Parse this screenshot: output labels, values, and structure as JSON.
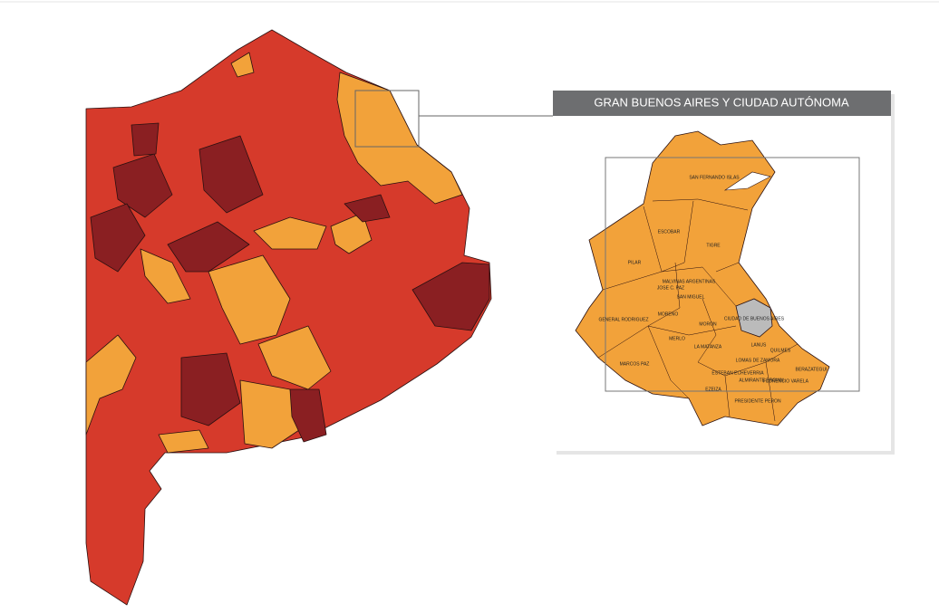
{
  "inset": {
    "title": "GRAN BUENOS AIRES Y CIUDAD AUTÓNOMA",
    "districts": [
      "SAN FERNANDO ISLAS",
      "ESCOBAR",
      "TIGRE",
      "PILAR",
      "MALVINAS ARGENTINAS",
      "JOSE C. PAZ",
      "SAN MIGUEL",
      "MORENO",
      "MORON",
      "GENERAL RODRIGUEZ",
      "MERLO",
      "CIUDAD DE BUENOS AIRES",
      "LA MATANZA",
      "LANUS",
      "QUILMES",
      "LOMAS DE ZAMORA",
      "BERAZATEGUI",
      "MARCOS PAZ",
      "ESTEBAN ECHEVERRIA",
      "ALMIRANTE BROWN",
      "FLORENCIO VARELA",
      "EZEIZA",
      "PRESIDENTE PERON"
    ]
  }
}
